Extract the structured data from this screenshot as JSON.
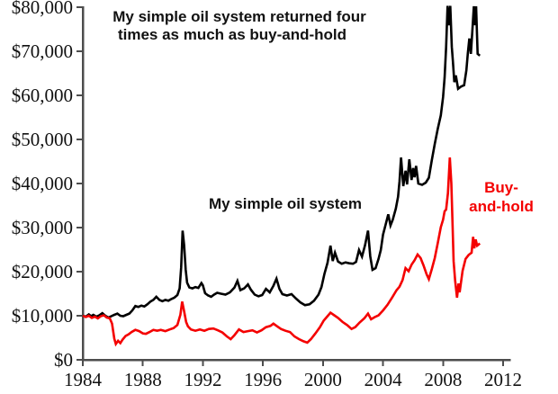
{
  "chart": {
    "title_line1": "My simple oil system returned four",
    "title_line2": "times as much as buy-and-hold",
    "system_label": "My simple oil system",
    "buyhold_label_line1": "Buy-",
    "buyhold_label_line2": "and-hold",
    "colors": {
      "system_line": "#000000",
      "buy_and_hold_line": "#f40000",
      "buy_and_hold_text": "#f40000",
      "axis": "#4d4d4d",
      "tick_text": "#111111",
      "background": "#ffffff"
    }
  },
  "chart_data": {
    "type": "line",
    "title": "My simple oil system returned four times as much as buy-and-hold",
    "xlabel": "",
    "ylabel": "",
    "x_range": [
      1984,
      2012.5
    ],
    "y_range": [
      0,
      80000
    ],
    "grid": false,
    "legend_position": "inline-annotations",
    "x_ticks": [
      {
        "value": 1984,
        "label": "1984"
      },
      {
        "value": 1988,
        "label": "1988"
      },
      {
        "value": 1992,
        "label": "1992"
      },
      {
        "value": 1996,
        "label": "1996"
      },
      {
        "value": 2000,
        "label": "2000"
      },
      {
        "value": 2004,
        "label": "2004"
      },
      {
        "value": 2008,
        "label": "2008"
      },
      {
        "value": 2012,
        "label": "2012"
      }
    ],
    "y_ticks": [
      {
        "value": 0,
        "label": "$0"
      },
      {
        "value": 10000,
        "label": "$10,000"
      },
      {
        "value": 20000,
        "label": "$20,000"
      },
      {
        "value": 30000,
        "label": "$30,000"
      },
      {
        "value": 40000,
        "label": "$40,000"
      },
      {
        "value": 50000,
        "label": "$50,000"
      },
      {
        "value": 60000,
        "label": "$60,000"
      },
      {
        "value": 70000,
        "label": "$70,000"
      },
      {
        "value": 80000,
        "label": "$80,000"
      }
    ],
    "series": [
      {
        "name": "My simple oil system",
        "color": "#000000",
        "points": [
          [
            1984.0,
            10000
          ],
          [
            1984.2,
            9800
          ],
          [
            1984.4,
            10300
          ],
          [
            1984.55,
            9900
          ],
          [
            1984.7,
            10200
          ],
          [
            1984.9,
            9800
          ],
          [
            1985.1,
            10100
          ],
          [
            1985.3,
            10600
          ],
          [
            1985.5,
            10000
          ],
          [
            1985.7,
            9600
          ],
          [
            1985.9,
            9900
          ],
          [
            1986.1,
            10200
          ],
          [
            1986.3,
            10500
          ],
          [
            1986.5,
            10000
          ],
          [
            1986.7,
            9900
          ],
          [
            1986.9,
            10200
          ],
          [
            1987.1,
            10500
          ],
          [
            1987.3,
            11200
          ],
          [
            1987.5,
            12200
          ],
          [
            1987.7,
            12000
          ],
          [
            1987.9,
            12300
          ],
          [
            1988.1,
            12100
          ],
          [
            1988.3,
            12600
          ],
          [
            1988.5,
            13200
          ],
          [
            1988.7,
            13600
          ],
          [
            1988.9,
            14300
          ],
          [
            1989.1,
            13600
          ],
          [
            1989.3,
            13300
          ],
          [
            1989.5,
            13600
          ],
          [
            1989.7,
            13400
          ],
          [
            1989.9,
            13800
          ],
          [
            1990.1,
            14100
          ],
          [
            1990.3,
            14700
          ],
          [
            1990.45,
            16200
          ],
          [
            1990.55,
            21000
          ],
          [
            1990.65,
            29300
          ],
          [
            1990.75,
            26000
          ],
          [
            1990.85,
            20500
          ],
          [
            1990.95,
            17500
          ],
          [
            1991.1,
            16400
          ],
          [
            1991.3,
            16200
          ],
          [
            1991.5,
            16500
          ],
          [
            1991.7,
            16300
          ],
          [
            1991.9,
            17400
          ],
          [
            1992.0,
            16900
          ],
          [
            1992.15,
            15100
          ],
          [
            1992.35,
            14600
          ],
          [
            1992.55,
            14300
          ],
          [
            1992.75,
            14800
          ],
          [
            1992.95,
            15200
          ],
          [
            1993.2,
            15000
          ],
          [
            1993.5,
            14800
          ],
          [
            1993.8,
            15300
          ],
          [
            1994.1,
            16400
          ],
          [
            1994.3,
            17900
          ],
          [
            1994.5,
            15800
          ],
          [
            1994.75,
            16200
          ],
          [
            1995.0,
            17100
          ],
          [
            1995.2,
            15900
          ],
          [
            1995.45,
            14800
          ],
          [
            1995.7,
            14400
          ],
          [
            1995.95,
            14700
          ],
          [
            1996.2,
            16100
          ],
          [
            1996.45,
            15300
          ],
          [
            1996.7,
            16800
          ],
          [
            1996.9,
            18400
          ],
          [
            1997.1,
            16100
          ],
          [
            1997.3,
            14900
          ],
          [
            1997.6,
            14600
          ],
          [
            1997.9,
            14900
          ],
          [
            1998.2,
            13900
          ],
          [
            1998.5,
            13000
          ],
          [
            1998.8,
            12400
          ],
          [
            1999.1,
            12600
          ],
          [
            1999.4,
            13400
          ],
          [
            1999.7,
            14800
          ],
          [
            1999.9,
            16500
          ],
          [
            2000.1,
            19500
          ],
          [
            2000.3,
            22000
          ],
          [
            2000.5,
            25900
          ],
          [
            2000.65,
            22400
          ],
          [
            2000.8,
            24300
          ],
          [
            2001.0,
            22300
          ],
          [
            2001.25,
            21800
          ],
          [
            2001.5,
            22100
          ],
          [
            2001.75,
            21900
          ],
          [
            2002.0,
            21800
          ],
          [
            2002.2,
            22200
          ],
          [
            2002.4,
            24900
          ],
          [
            2002.6,
            23400
          ],
          [
            2002.8,
            26000
          ],
          [
            2003.0,
            29300
          ],
          [
            2003.15,
            23500
          ],
          [
            2003.3,
            20400
          ],
          [
            2003.5,
            20800
          ],
          [
            2003.7,
            22900
          ],
          [
            2003.85,
            24900
          ],
          [
            2004.0,
            28400
          ],
          [
            2004.2,
            31000
          ],
          [
            2004.35,
            33000
          ],
          [
            2004.5,
            30500
          ],
          [
            2004.65,
            31800
          ],
          [
            2004.85,
            34300
          ],
          [
            2005.0,
            37000
          ],
          [
            2005.1,
            40500
          ],
          [
            2005.2,
            45900
          ],
          [
            2005.35,
            39400
          ],
          [
            2005.5,
            42900
          ],
          [
            2005.6,
            39800
          ],
          [
            2005.75,
            45500
          ],
          [
            2005.9,
            40800
          ],
          [
            2006.0,
            43500
          ],
          [
            2006.1,
            41400
          ],
          [
            2006.2,
            44000
          ],
          [
            2006.35,
            40000
          ],
          [
            2006.6,
            39700
          ],
          [
            2006.85,
            40200
          ],
          [
            2007.05,
            41300
          ],
          [
            2007.25,
            45300
          ],
          [
            2007.45,
            49000
          ],
          [
            2007.65,
            52500
          ],
          [
            2007.85,
            55500
          ],
          [
            2008.0,
            59600
          ],
          [
            2008.1,
            64000
          ],
          [
            2008.2,
            71000
          ],
          [
            2008.3,
            80300
          ],
          [
            2008.38,
            75900
          ],
          [
            2008.48,
            80300
          ],
          [
            2008.58,
            71000
          ],
          [
            2008.65,
            67800
          ],
          [
            2008.75,
            63000
          ],
          [
            2008.85,
            64500
          ],
          [
            2009.0,
            61500
          ],
          [
            2009.2,
            62000
          ],
          [
            2009.4,
            62300
          ],
          [
            2009.55,
            65700
          ],
          [
            2009.65,
            69500
          ],
          [
            2009.75,
            72900
          ],
          [
            2009.85,
            69400
          ],
          [
            2009.95,
            74500
          ],
          [
            2010.05,
            80200
          ],
          [
            2010.12,
            75900
          ],
          [
            2010.2,
            80200
          ],
          [
            2010.3,
            69400
          ],
          [
            2010.45,
            69000
          ]
        ]
      },
      {
        "name": "Buy-and-hold",
        "color": "#f40000",
        "points": [
          [
            1984.0,
            10000
          ],
          [
            1984.2,
            9700
          ],
          [
            1984.4,
            10000
          ],
          [
            1984.6,
            9500
          ],
          [
            1984.8,
            9800
          ],
          [
            1985.0,
            9400
          ],
          [
            1985.2,
            9900
          ],
          [
            1985.4,
            10100
          ],
          [
            1985.6,
            9600
          ],
          [
            1985.8,
            9400
          ],
          [
            1985.95,
            8200
          ],
          [
            1986.1,
            4800
          ],
          [
            1986.2,
            3600
          ],
          [
            1986.35,
            4300
          ],
          [
            1986.5,
            3800
          ],
          [
            1986.65,
            4600
          ],
          [
            1986.85,
            5400
          ],
          [
            1987.05,
            5800
          ],
          [
            1987.25,
            6300
          ],
          [
            1987.5,
            6800
          ],
          [
            1987.75,
            6500
          ],
          [
            1988.0,
            6000
          ],
          [
            1988.2,
            5900
          ],
          [
            1988.45,
            6300
          ],
          [
            1988.7,
            6800
          ],
          [
            1988.95,
            6600
          ],
          [
            1989.2,
            6800
          ],
          [
            1989.5,
            6500
          ],
          [
            1989.8,
            6900
          ],
          [
            1990.05,
            7200
          ],
          [
            1990.3,
            7900
          ],
          [
            1990.5,
            10200
          ],
          [
            1990.62,
            13200
          ],
          [
            1990.75,
            11000
          ],
          [
            1990.88,
            8600
          ],
          [
            1991.0,
            7600
          ],
          [
            1991.2,
            6900
          ],
          [
            1991.5,
            6600
          ],
          [
            1991.8,
            6900
          ],
          [
            1992.1,
            6600
          ],
          [
            1992.4,
            7000
          ],
          [
            1992.7,
            7100
          ],
          [
            1993.0,
            6700
          ],
          [
            1993.3,
            6200
          ],
          [
            1993.6,
            5300
          ],
          [
            1993.85,
            4700
          ],
          [
            1994.1,
            5600
          ],
          [
            1994.4,
            6900
          ],
          [
            1994.7,
            6300
          ],
          [
            1995.0,
            6500
          ],
          [
            1995.3,
            6700
          ],
          [
            1995.6,
            6200
          ],
          [
            1995.9,
            6700
          ],
          [
            1996.2,
            7400
          ],
          [
            1996.5,
            7700
          ],
          [
            1996.7,
            8200
          ],
          [
            1996.95,
            7600
          ],
          [
            1997.2,
            7000
          ],
          [
            1997.5,
            6600
          ],
          [
            1997.8,
            6300
          ],
          [
            1998.1,
            5300
          ],
          [
            1998.4,
            4700
          ],
          [
            1998.7,
            4200
          ],
          [
            1998.95,
            3900
          ],
          [
            1999.2,
            4700
          ],
          [
            1999.5,
            6000
          ],
          [
            1999.8,
            7400
          ],
          [
            2000.05,
            8900
          ],
          [
            2000.3,
            9900
          ],
          [
            2000.5,
            10700
          ],
          [
            2000.75,
            10100
          ],
          [
            2001.0,
            9500
          ],
          [
            2001.3,
            8600
          ],
          [
            2001.6,
            7900
          ],
          [
            2001.9,
            7000
          ],
          [
            2002.15,
            7400
          ],
          [
            2002.45,
            8500
          ],
          [
            2002.75,
            9400
          ],
          [
            2003.0,
            10500
          ],
          [
            2003.2,
            9200
          ],
          [
            2003.45,
            9700
          ],
          [
            2003.7,
            10100
          ],
          [
            2004.0,
            11200
          ],
          [
            2004.3,
            12500
          ],
          [
            2004.6,
            14100
          ],
          [
            2004.9,
            15800
          ],
          [
            2005.1,
            16600
          ],
          [
            2005.3,
            18100
          ],
          [
            2005.5,
            20800
          ],
          [
            2005.7,
            20100
          ],
          [
            2005.9,
            21600
          ],
          [
            2006.1,
            22600
          ],
          [
            2006.3,
            23900
          ],
          [
            2006.5,
            23100
          ],
          [
            2006.7,
            21400
          ],
          [
            2006.9,
            19400
          ],
          [
            2007.05,
            18300
          ],
          [
            2007.25,
            20600
          ],
          [
            2007.45,
            23100
          ],
          [
            2007.65,
            26600
          ],
          [
            2007.85,
            30100
          ],
          [
            2008.0,
            31800
          ],
          [
            2008.1,
            33700
          ],
          [
            2008.2,
            34100
          ],
          [
            2008.32,
            37800
          ],
          [
            2008.45,
            45900
          ],
          [
            2008.55,
            40000
          ],
          [
            2008.63,
            31000
          ],
          [
            2008.7,
            22400
          ],
          [
            2008.8,
            18000
          ],
          [
            2008.93,
            14100
          ],
          [
            2009.03,
            17300
          ],
          [
            2009.1,
            15300
          ],
          [
            2009.3,
            20200
          ],
          [
            2009.5,
            22900
          ],
          [
            2009.7,
            23800
          ],
          [
            2009.9,
            24300
          ],
          [
            2010.0,
            27900
          ],
          [
            2010.08,
            25300
          ],
          [
            2010.17,
            27300
          ],
          [
            2010.27,
            25900
          ],
          [
            2010.45,
            26400
          ]
        ]
      }
    ]
  }
}
